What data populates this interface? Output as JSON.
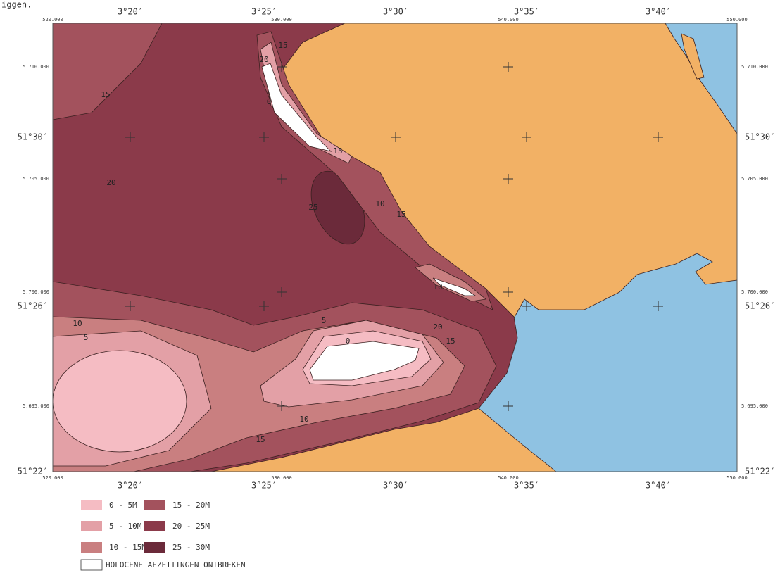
{
  "header": {
    "partial_text": "iggen."
  },
  "frame": {
    "top_degrees": [
      "3°20′",
      "3°25′",
      "3°30′",
      "3°35′",
      "3°40′"
    ],
    "top_coords": [
      "520.000",
      "530.000",
      "540.000",
      "550.000"
    ],
    "bottom_degrees": [
      "3°20′",
      "3°25′",
      "3°30′",
      "3°35′",
      "3°40′"
    ],
    "bottom_coords": [
      "520.000",
      "530.000",
      "540.000",
      "550.000"
    ],
    "left_coords": [
      "5.710.000",
      "5.705.000",
      "5.700.000",
      "5.695.000"
    ],
    "left_degrees": [
      "51°30′",
      "51°26′",
      "51°22′"
    ],
    "right_coords": [
      "5.710.000",
      "5.705.000",
      "5.700.000",
      "5.695.000"
    ],
    "right_degrees": [
      "51°30′",
      "51°26′",
      "51°22′"
    ]
  },
  "contour_labels": [
    "15",
    "20",
    "25",
    "10",
    "15",
    "15",
    "20",
    "0",
    "15",
    "10",
    "20",
    "15",
    "10",
    "5",
    "5",
    "0",
    "10",
    "15"
  ],
  "legend": {
    "items": [
      "0 - 5M",
      "5 - 10M",
      "10 - 15M",
      "15 - 20M",
      "20 - 25M",
      "25 - 30M"
    ],
    "absent": "HOLOCENE AFZETTINGEN ONTBREKEN"
  }
}
